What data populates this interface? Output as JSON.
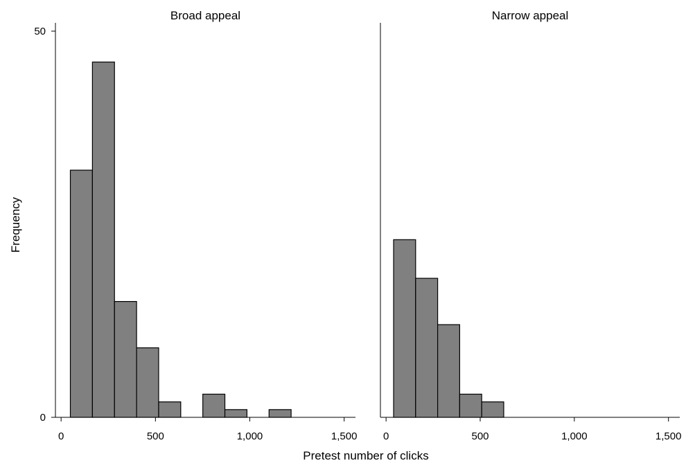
{
  "chart_data": {
    "type": "bar",
    "xlabel": "Pretest number of clicks",
    "ylabel": "Frequency",
    "xlim": [
      -30,
      1560
    ],
    "ylim": [
      0,
      50
    ],
    "xticks": [
      0,
      500,
      1000,
      1500
    ],
    "xtick_labels": [
      "0",
      "500",
      "1,000",
      "1,500"
    ],
    "yticks": [
      0,
      50
    ],
    "ytick_labels": [
      "0",
      "50"
    ],
    "panels": [
      {
        "title": "Broad appeal",
        "bins": [
          {
            "start": 49,
            "end": 166,
            "count": 32
          },
          {
            "start": 166,
            "end": 283,
            "count": 46
          },
          {
            "start": 283,
            "end": 400,
            "count": 15
          },
          {
            "start": 400,
            "end": 517,
            "count": 9
          },
          {
            "start": 517,
            "end": 634,
            "count": 2
          },
          {
            "start": 634,
            "end": 751,
            "count": 0
          },
          {
            "start": 751,
            "end": 868,
            "count": 3
          },
          {
            "start": 868,
            "end": 985,
            "count": 1
          },
          {
            "start": 985,
            "end": 1102,
            "count": 0
          },
          {
            "start": 1102,
            "end": 1219,
            "count": 1
          }
        ]
      },
      {
        "title": "Narrow appeal",
        "bins": [
          {
            "start": 40,
            "end": 157,
            "count": 23
          },
          {
            "start": 157,
            "end": 274,
            "count": 18
          },
          {
            "start": 274,
            "end": 391,
            "count": 12
          },
          {
            "start": 391,
            "end": 508,
            "count": 3
          },
          {
            "start": 508,
            "end": 625,
            "count": 2
          }
        ]
      }
    ]
  }
}
